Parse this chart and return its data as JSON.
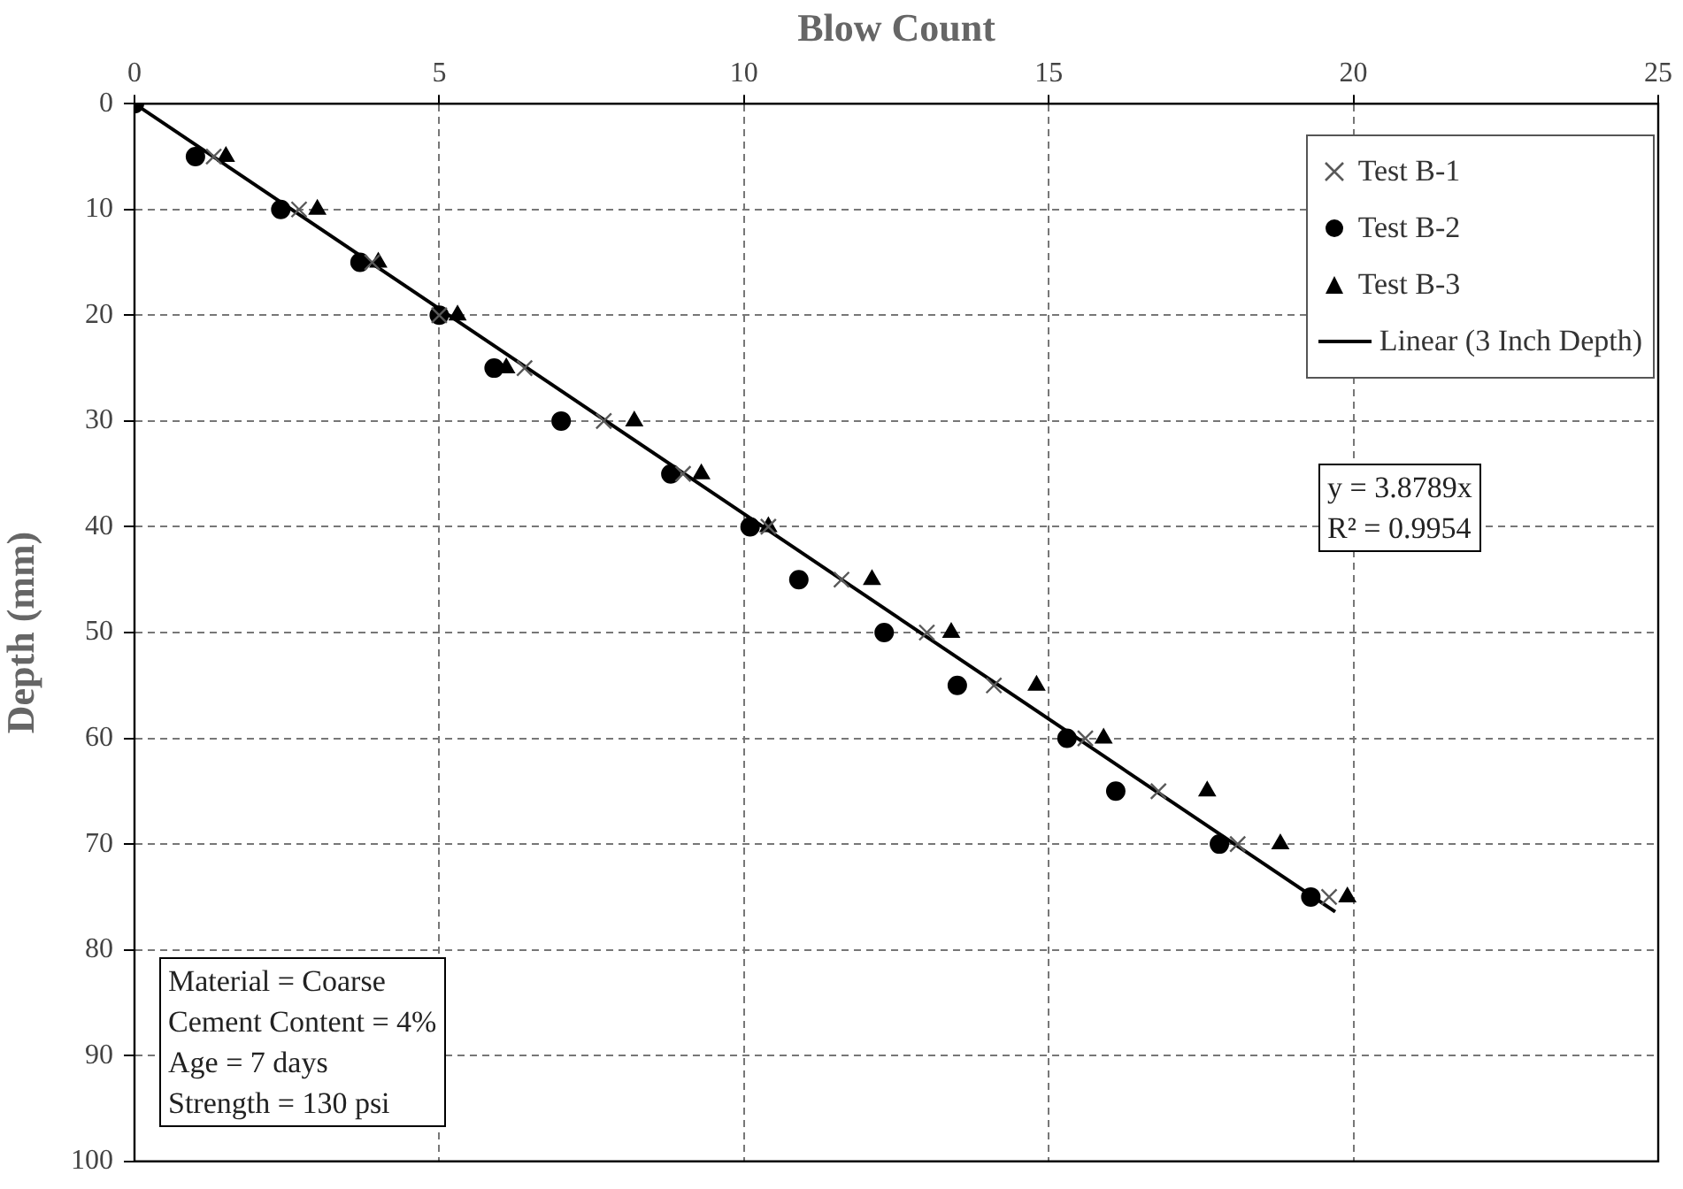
{
  "chart_data": {
    "type": "scatter",
    "xlabel": "Blow Count",
    "ylabel": "Depth (mm)",
    "xlim": [
      0,
      25
    ],
    "xticks": [
      0,
      5,
      10,
      15,
      20,
      25
    ],
    "ylim": [
      100,
      0
    ],
    "yticks": [
      0,
      10,
      20,
      30,
      40,
      50,
      60,
      70,
      80,
      90,
      100
    ],
    "grid": true,
    "legend": "top right",
    "series": [
      {
        "name": "Test B-1",
        "color": "#595959",
        "marker": "cross",
        "x": [
          null,
          1.3,
          2.7,
          3.9,
          5.0,
          6.4,
          7.7,
          9.0,
          10.4,
          11.6,
          13.0,
          14.1,
          15.6,
          16.8,
          18.1,
          19.6
        ],
        "values": [
          null,
          5,
          10,
          15,
          20,
          25,
          30,
          35,
          40,
          45,
          50,
          55,
          60,
          65,
          70,
          75
        ]
      },
      {
        "name": "Test B-2",
        "color": "#000000",
        "marker": "circle",
        "x": [
          0,
          1.0,
          2.4,
          3.7,
          5.0,
          5.9,
          7.0,
          8.8,
          10.1,
          10.9,
          12.3,
          13.5,
          15.3,
          16.1,
          17.8,
          19.3
        ],
        "values": [
          0,
          5,
          10,
          15,
          20,
          25,
          30,
          35,
          40,
          45,
          50,
          55,
          60,
          65,
          70,
          75
        ]
      },
      {
        "name": "Test B-3",
        "color": "#000000",
        "marker": "triangle",
        "x": [
          null,
          1.5,
          3.0,
          4.0,
          5.3,
          6.1,
          8.2,
          9.3,
          10.4,
          12.1,
          13.4,
          14.8,
          15.9,
          17.6,
          18.8,
          19.9
        ],
        "values": [
          null,
          5,
          10,
          15,
          20,
          25,
          30,
          35,
          40,
          45,
          50,
          55,
          60,
          65,
          70,
          75
        ]
      },
      {
        "name": "Linear (3 Inch Depth)",
        "type": "line",
        "color": "#000000",
        "marker": "none",
        "line_style": "solid",
        "x": [
          0,
          19.7
        ],
        "values": [
          0,
          76.4
        ]
      }
    ],
    "annotations": [
      "y = 3.8789x\nR² = 0.9954",
      "Material = Coarse\nCement Content = 4%\nAge = 7 days\nStrength = 130 psi"
    ]
  }
}
